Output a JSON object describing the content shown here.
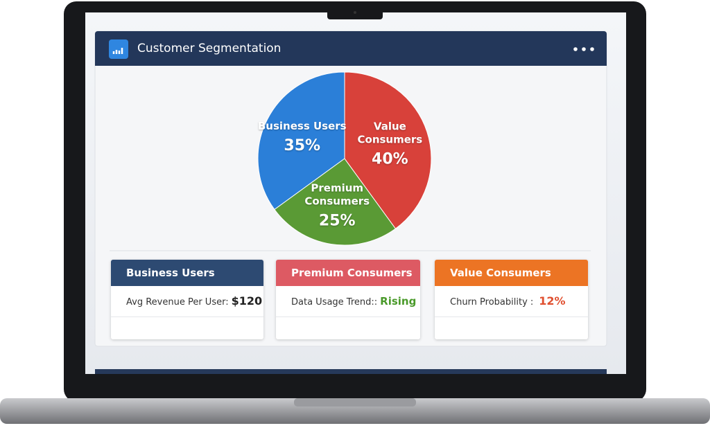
{
  "header": {
    "title": "Customer Segmentation"
  },
  "chart_data": {
    "type": "pie",
    "categories": [
      "Business Users",
      "Premium Consumers",
      "Value Consumers"
    ],
    "values": [
      35,
      25,
      40
    ],
    "value_labels": [
      "35%",
      "25%",
      "40%"
    ],
    "colors": [
      "#2b7fd8",
      "#5a9a35",
      "#d8413a"
    ]
  },
  "cards": [
    {
      "title": "Business Users",
      "metric": "Avg Revenue Per User:",
      "value": "$120"
    },
    {
      "title": "Premium Consumers",
      "metric": "Data Usage Trend::",
      "value": "Rising"
    },
    {
      "title": "Value Consumers",
      "metric": "Churn Probability :",
      "value": "12%"
    }
  ]
}
